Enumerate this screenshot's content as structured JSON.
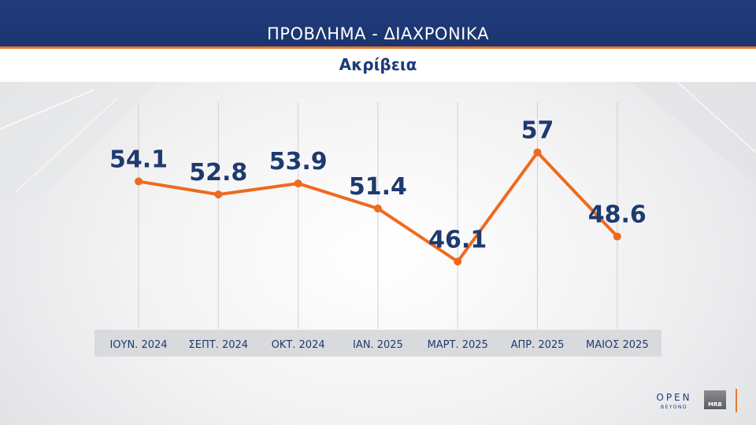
{
  "header": {
    "title": "ΠΡΟΒΛΗΜΑ - ΔΙΑΧΡΟΝΙΚΑ"
  },
  "subheader": {
    "title": "Ακρίβεια"
  },
  "chart_data": {
    "type": "line",
    "categories": [
      "ΙΟΥΝ. 2024",
      "ΣΕΠΤ. 2024",
      "ΟΚΤ. 2024",
      "ΙΑΝ. 2025",
      "ΜΑΡΤ. 2025",
      "ΑΠΡ. 2025",
      "ΜΑΙΟΣ 2025"
    ],
    "values": [
      54.1,
      52.8,
      53.9,
      51.4,
      46.1,
      57,
      48.6
    ],
    "value_labels": [
      "54.1",
      "52.8",
      "53.9",
      "51.4",
      "46.1",
      "57",
      "48.6"
    ],
    "title": "Ακρίβεια",
    "ylim": [
      40,
      62
    ],
    "grid": "vertical",
    "colors": {
      "line": "#ee6a1f",
      "labels": "#1e3a6e",
      "category_bar": "#d7d8dc"
    }
  },
  "branding": {
    "open": "OPEN",
    "beyond": "BEYOND",
    "mrb": "MRB"
  }
}
